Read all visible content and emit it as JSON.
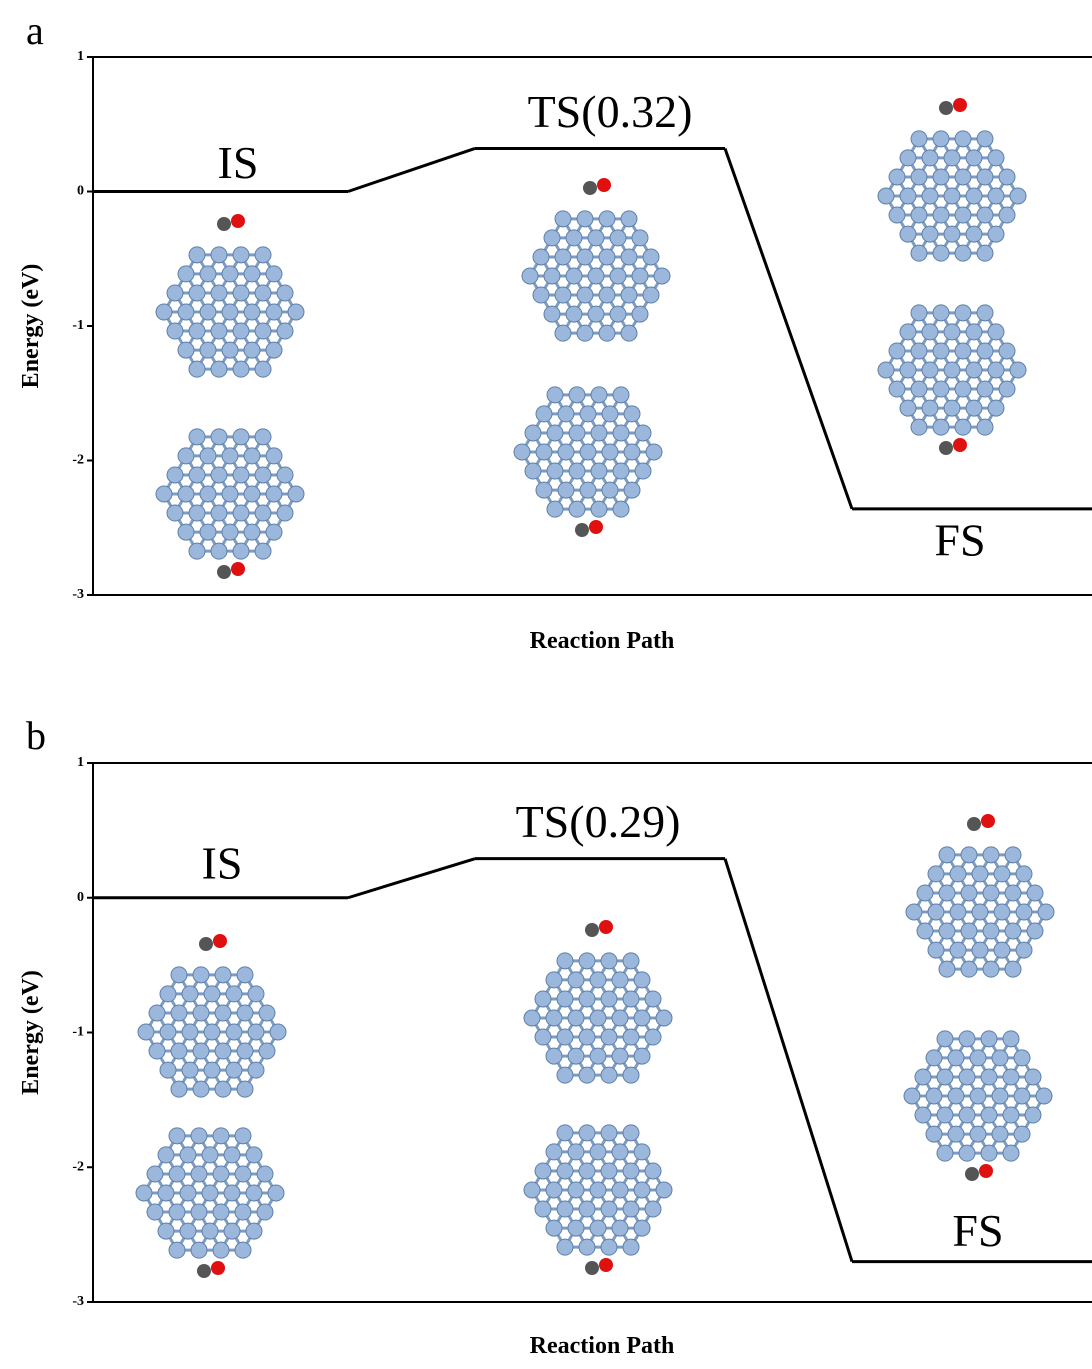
{
  "chart_data": [
    {
      "type": "energy_profile",
      "panel_label": "a",
      "ylabel": "Energy (eV)",
      "xlabel": "Reaction Path",
      "categories": [
        "IS",
        "TS(0.32)",
        "FS"
      ],
      "values": [
        0,
        0.32,
        -2.36
      ],
      "color": "#000000",
      "ylim": [
        -3,
        1
      ],
      "yticks": [
        -3,
        -2,
        -1,
        0,
        1
      ]
    },
    {
      "type": "energy_profile",
      "panel_label": "b",
      "ylabel": "Energy (eV)",
      "xlabel": "Reaction Path",
      "categories": [
        "IS",
        "TS(0.29)",
        "FS"
      ],
      "values": [
        0,
        0.29,
        -2.7
      ],
      "color": "#000000",
      "ylim": [
        -3,
        1
      ],
      "yticks": [
        -3,
        -2,
        -1,
        0,
        1
      ]
    }
  ]
}
